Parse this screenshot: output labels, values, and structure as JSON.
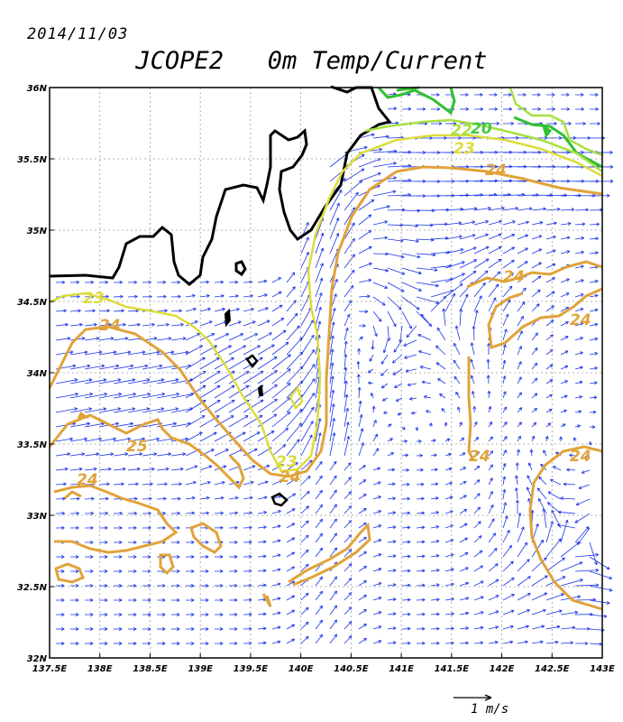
{
  "date": "2014/11/03",
  "title": "JCOPE2   0m Temp/Current",
  "axes": {
    "lon_ticks": [
      "137.5E",
      "138E",
      "138.5E",
      "139E",
      "139.5E",
      "140E",
      "140.5E",
      "141E",
      "141.5E",
      "142E",
      "142.5E",
      "143E"
    ],
    "lat_ticks": [
      "32N",
      "32.5N",
      "33N",
      "33.5N",
      "34N",
      "34.5N",
      "35N",
      "35.5N",
      "36N"
    ],
    "lon_range": [
      137.5,
      143
    ],
    "lat_range": [
      32,
      36
    ],
    "grid": true
  },
  "contour_labels": [
    {
      "text": "23",
      "color": "#dcdc3c"
    },
    {
      "text": "24",
      "color": "#e0a33a"
    },
    {
      "text": "23",
      "color": "#dcdc3c"
    },
    {
      "text": "24",
      "color": "#e0a33a"
    },
    {
      "text": "24",
      "color": "#e0a33a"
    },
    {
      "text": "24",
      "color": "#e0a33a"
    },
    {
      "text": "24",
      "color": "#e0a33a"
    },
    {
      "text": "25",
      "color": "#e0a33a"
    },
    {
      "text": "24",
      "color": "#e0a33a"
    },
    {
      "text": "24",
      "color": "#e0a33a"
    },
    {
      "text": "22",
      "color": "#a8e040"
    },
    {
      "text": "20",
      "color": "#40cc40"
    }
  ],
  "colors": {
    "contour_20": "#30c030",
    "contour_22": "#a8e040",
    "contour_23": "#dcdc3c",
    "contour_24": "#e0a33a",
    "vectors": "#1a33e6",
    "coast": "#000000"
  },
  "reference_vector": {
    "label": "1 m/s"
  }
}
